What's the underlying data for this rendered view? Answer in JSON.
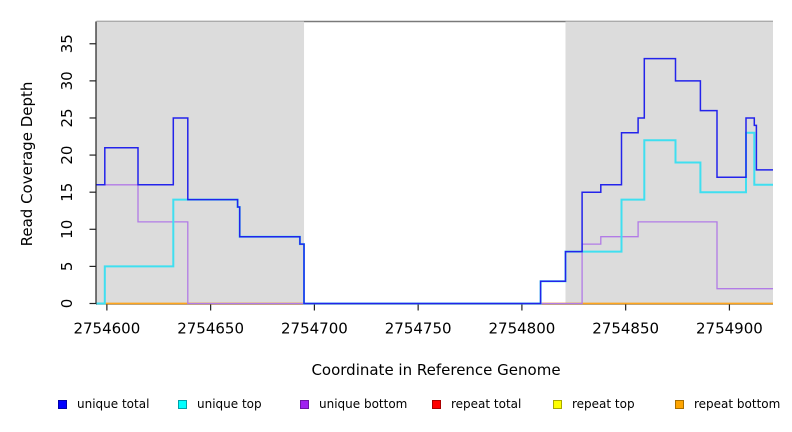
{
  "chart_data": {
    "type": "line",
    "subtype": "step-after",
    "title": "",
    "xlabel": "Coordinate in Reference Genome",
    "ylabel": "Read Coverage Depth",
    "xlim": [
      2754595,
      2754921
    ],
    "ylim": [
      0,
      38
    ],
    "grid": false,
    "x_ticks": [
      2754600,
      2754650,
      2754700,
      2754750,
      2754800,
      2754850,
      2754900
    ],
    "x_tick_labels": [
      "2754600",
      "2754650",
      "2754700",
      "2754750",
      "2754800",
      "2754850",
      "2754900"
    ],
    "y_ticks": [
      0,
      5,
      10,
      15,
      20,
      25,
      30,
      35
    ],
    "y_tick_labels": [
      "0",
      "5",
      "10",
      "15",
      "20",
      "25",
      "30",
      "35"
    ],
    "shade_color": "#DCDCDC",
    "shaded_regions": [
      {
        "x0": 2754595,
        "x1": 2754695
      },
      {
        "x0": 2754821,
        "x1": 2754921
      }
    ],
    "series": [
      {
        "name": "repeat total",
        "color": "#E03030",
        "width": 1.2,
        "steps": [
          [
            2754595,
            0
          ],
          [
            2754921,
            0
          ]
        ]
      },
      {
        "name": "repeat top",
        "color": "#F5F50A",
        "width": 1.2,
        "steps": [
          [
            2754595,
            0
          ],
          [
            2754921,
            0
          ]
        ]
      },
      {
        "name": "repeat bottom",
        "color": "#FFA51E",
        "width": 1.6,
        "steps": [
          [
            2754595,
            0
          ],
          [
            2754921,
            0
          ]
        ]
      },
      {
        "name": "unique bottom",
        "color": "#B27BE6",
        "width": 1.3,
        "steps": [
          [
            2754595,
            16
          ],
          [
            2754615,
            11
          ],
          [
            2754639,
            0
          ],
          [
            2754829,
            8
          ],
          [
            2754838,
            9
          ],
          [
            2754856,
            11
          ],
          [
            2754894,
            2
          ],
          [
            2754921,
            2
          ]
        ]
      },
      {
        "name": "unique top",
        "color": "#3FDFF0",
        "width": 2,
        "steps": [
          [
            2754595,
            0
          ],
          [
            2754599,
            5
          ],
          [
            2754632,
            14
          ],
          [
            2754663,
            13
          ],
          [
            2754664,
            9
          ],
          [
            2754693,
            8
          ],
          [
            2754695,
            0
          ],
          [
            2754809,
            3
          ],
          [
            2754821,
            7
          ],
          [
            2754848,
            14
          ],
          [
            2754859,
            22
          ],
          [
            2754874,
            19
          ],
          [
            2754886,
            15
          ],
          [
            2754908,
            23
          ],
          [
            2754912,
            16
          ],
          [
            2754921,
            16
          ]
        ]
      },
      {
        "name": "unique total",
        "color": "#2323EB",
        "width": 1.5,
        "steps": [
          [
            2754595,
            16
          ],
          [
            2754599,
            21
          ],
          [
            2754615,
            16
          ],
          [
            2754632,
            25
          ],
          [
            2754639,
            14
          ],
          [
            2754663,
            13
          ],
          [
            2754664,
            9
          ],
          [
            2754693,
            8
          ],
          [
            2754695,
            0
          ],
          [
            2754809,
            3
          ],
          [
            2754821,
            7
          ],
          [
            2754829,
            15
          ],
          [
            2754838,
            16
          ],
          [
            2754848,
            23
          ],
          [
            2754856,
            25
          ],
          [
            2754859,
            33
          ],
          [
            2754874,
            30
          ],
          [
            2754886,
            26
          ],
          [
            2754894,
            17
          ],
          [
            2754908,
            25
          ],
          [
            2754912,
            24
          ],
          [
            2754913,
            18
          ],
          [
            2754921,
            18
          ]
        ]
      }
    ],
    "legend": [
      {
        "label": "unique total",
        "color": "#0000FF",
        "border": "#0000A8"
      },
      {
        "label": "unique top",
        "color": "#00FFFF",
        "border": "#00A0A8"
      },
      {
        "label": "unique bottom",
        "color": "#A020F0",
        "border": "#6D14A4"
      },
      {
        "label": "repeat total",
        "color": "#FF0000",
        "border": "#A80000"
      },
      {
        "label": "repeat top",
        "color": "#FFFF00",
        "border": "#A8A800"
      },
      {
        "label": "repeat bottom",
        "color": "#FFA500",
        "border": "#A86E00"
      }
    ],
    "legend_position": "bottom"
  }
}
